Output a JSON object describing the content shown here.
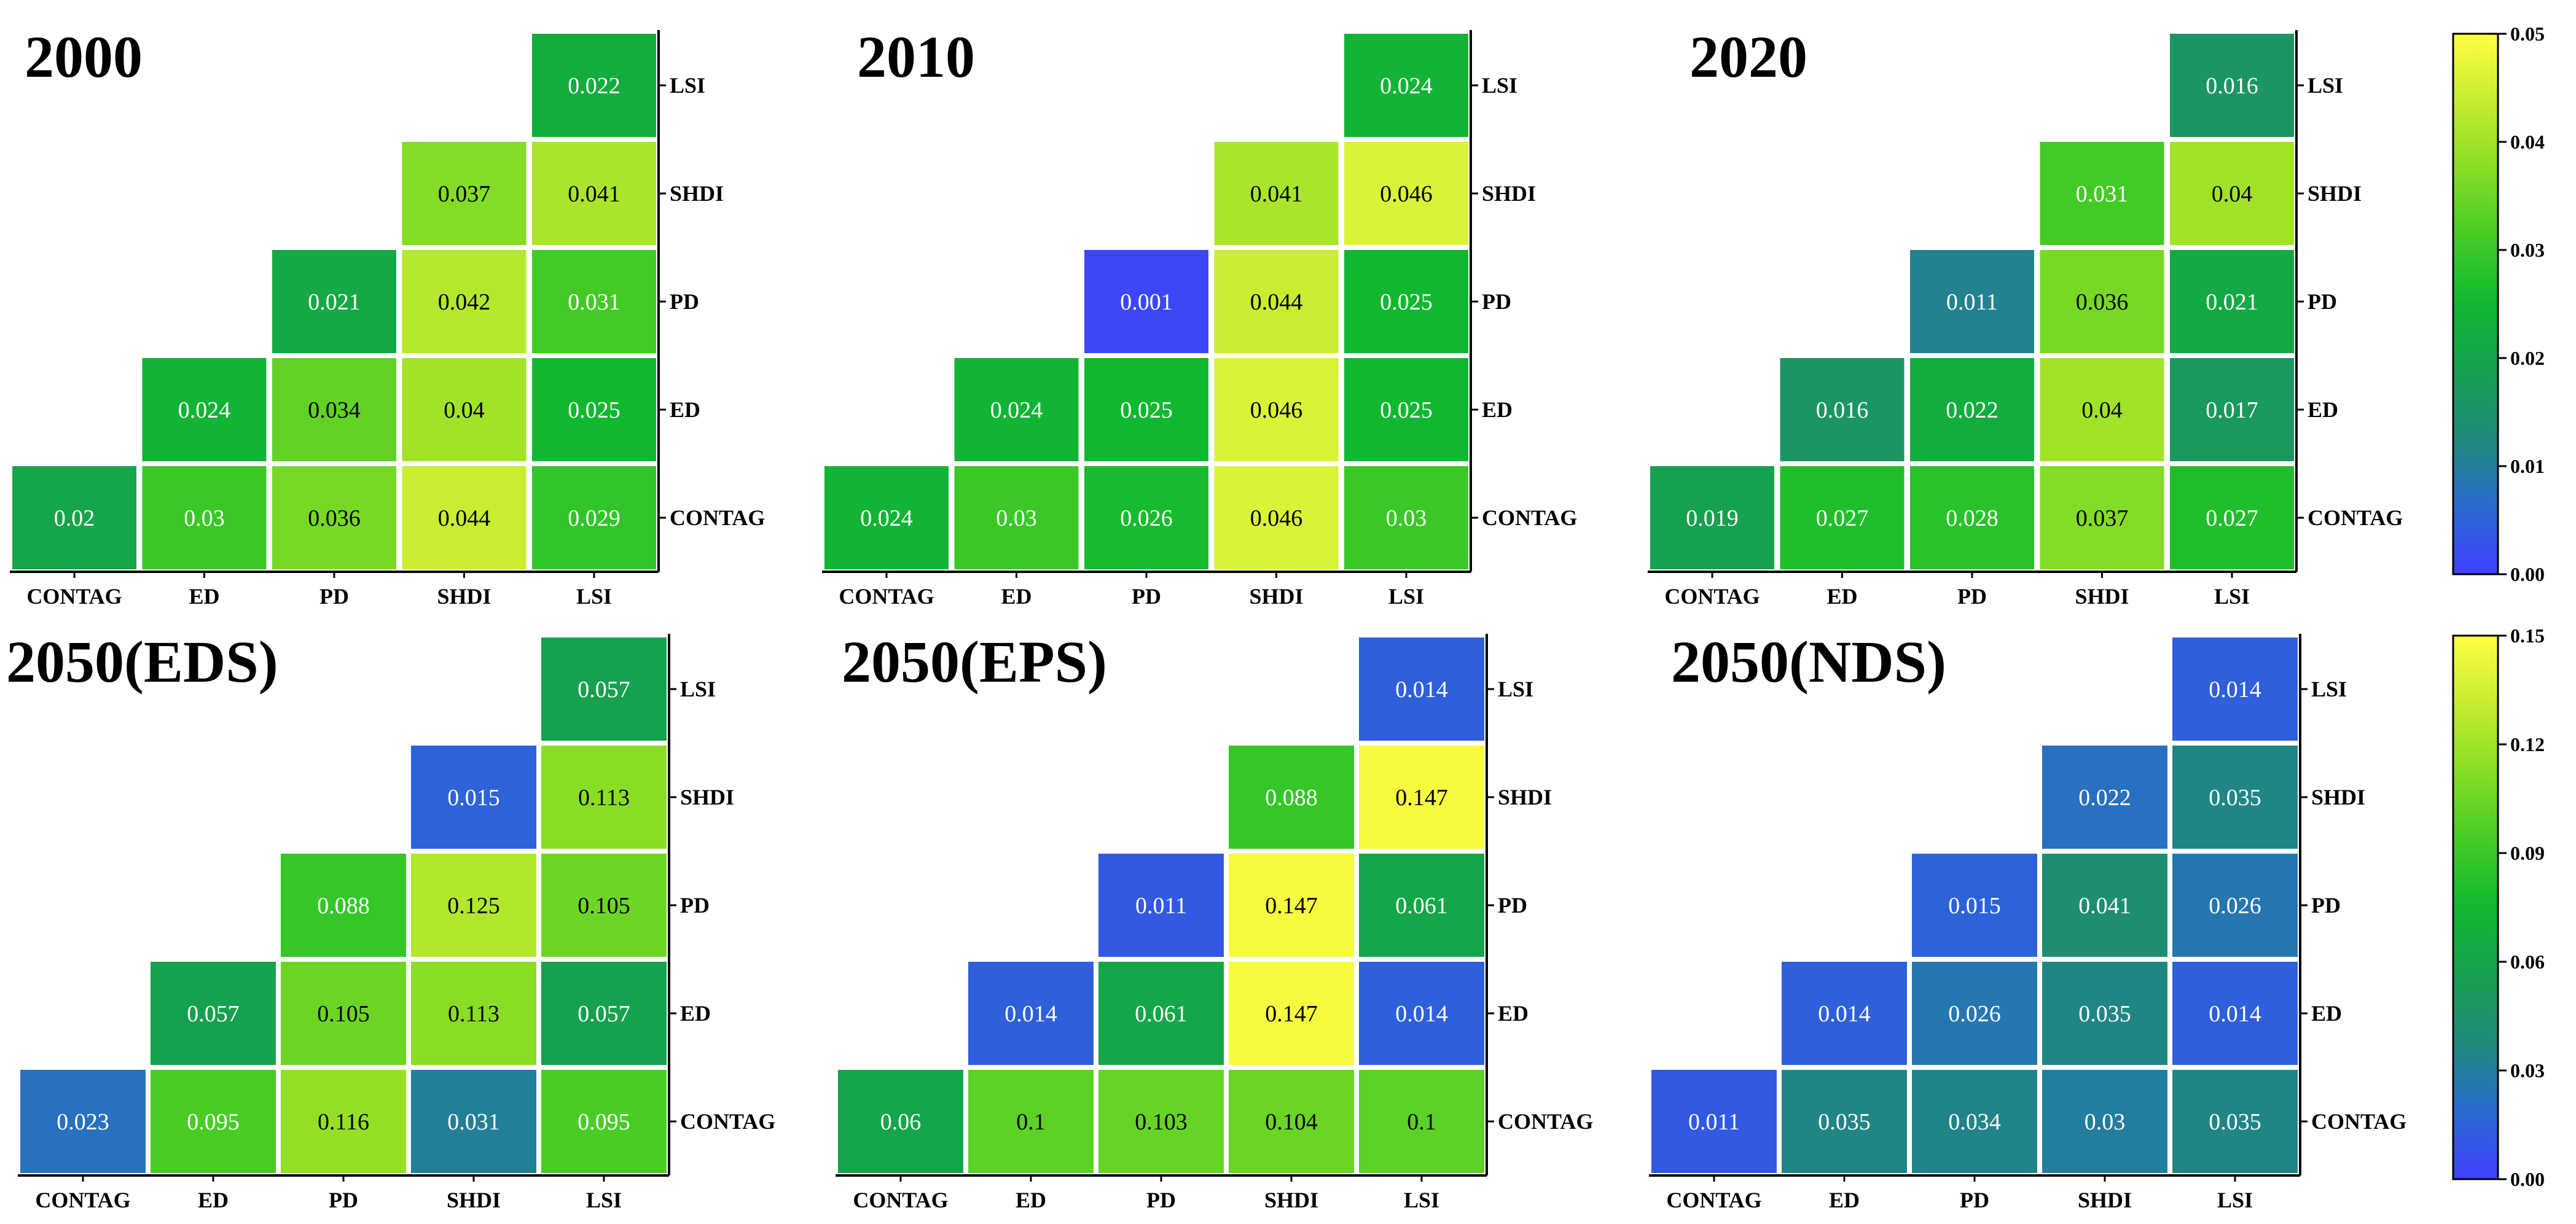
{
  "chart_data": [
    {
      "type": "heatmap",
      "title": "2000",
      "x_categories": [
        "CONTAG",
        "ED",
        "PD",
        "SHDI",
        "LSI"
      ],
      "y_categories": [
        "LSI",
        "SHDI",
        "PD",
        "ED",
        "CONTAG"
      ],
      "cells": [
        {
          "x": "LSI",
          "y": "LSI",
          "label": "0.022",
          "value": 0.022
        },
        {
          "x": "SHDI",
          "y": "SHDI",
          "label": "0.037",
          "value": 0.037
        },
        {
          "x": "LSI",
          "y": "SHDI",
          "label": "0.041",
          "value": 0.041
        },
        {
          "x": "PD",
          "y": "PD",
          "label": "0.021",
          "value": 0.021
        },
        {
          "x": "SHDI",
          "y": "PD",
          "label": "0.042",
          "value": 0.042
        },
        {
          "x": "LSI",
          "y": "PD",
          "label": "0.031",
          "value": 0.031
        },
        {
          "x": "ED",
          "y": "ED",
          "label": "0.024",
          "value": 0.024
        },
        {
          "x": "PD",
          "y": "ED",
          "label": "0.034",
          "value": 0.034
        },
        {
          "x": "SHDI",
          "y": "ED",
          "label": "0.04",
          "value": 0.04
        },
        {
          "x": "LSI",
          "y": "ED",
          "label": "0.025",
          "value": 0.025
        },
        {
          "x": "CONTAG",
          "y": "CONTAG",
          "label": "0.02",
          "value": 0.02
        },
        {
          "x": "ED",
          "y": "CONTAG",
          "label": "0.03",
          "value": 0.03
        },
        {
          "x": "PD",
          "y": "CONTAG",
          "label": "0.036",
          "value": 0.036
        },
        {
          "x": "SHDI",
          "y": "CONTAG",
          "label": "0.044",
          "value": 0.044
        },
        {
          "x": "LSI",
          "y": "CONTAG",
          "label": "0.029",
          "value": 0.029
        }
      ],
      "color_range": [
        0,
        0.05
      ]
    },
    {
      "type": "heatmap",
      "title": "2010",
      "x_categories": [
        "CONTAG",
        "ED",
        "PD",
        "SHDI",
        "LSI"
      ],
      "y_categories": [
        "LSI",
        "SHDI",
        "PD",
        "ED",
        "CONTAG"
      ],
      "cells": [
        {
          "x": "LSI",
          "y": "LSI",
          "label": "0.024",
          "value": 0.024
        },
        {
          "x": "SHDI",
          "y": "SHDI",
          "label": "0.041",
          "value": 0.041
        },
        {
          "x": "LSI",
          "y": "SHDI",
          "label": "0.046",
          "value": 0.046
        },
        {
          "x": "PD",
          "y": "PD",
          "label": "0.001",
          "value": 0.001
        },
        {
          "x": "SHDI",
          "y": "PD",
          "label": "0.044",
          "value": 0.044
        },
        {
          "x": "LSI",
          "y": "PD",
          "label": "0.025",
          "value": 0.025
        },
        {
          "x": "ED",
          "y": "ED",
          "label": "0.024",
          "value": 0.024
        },
        {
          "x": "PD",
          "y": "ED",
          "label": "0.025",
          "value": 0.025
        },
        {
          "x": "SHDI",
          "y": "ED",
          "label": "0.046",
          "value": 0.046
        },
        {
          "x": "LSI",
          "y": "ED",
          "label": "0.025",
          "value": 0.025
        },
        {
          "x": "CONTAG",
          "y": "CONTAG",
          "label": "0.024",
          "value": 0.024
        },
        {
          "x": "ED",
          "y": "CONTAG",
          "label": "0.03",
          "value": 0.03
        },
        {
          "x": "PD",
          "y": "CONTAG",
          "label": "0.026",
          "value": 0.026
        },
        {
          "x": "SHDI",
          "y": "CONTAG",
          "label": "0.046",
          "value": 0.046
        },
        {
          "x": "LSI",
          "y": "CONTAG",
          "label": "0.03",
          "value": 0.03
        }
      ],
      "color_range": [
        0,
        0.05
      ]
    },
    {
      "type": "heatmap",
      "title": "2020",
      "x_categories": [
        "CONTAG",
        "ED",
        "PD",
        "SHDI",
        "LSI"
      ],
      "y_categories": [
        "LSI",
        "SHDI",
        "PD",
        "ED",
        "CONTAG"
      ],
      "cells": [
        {
          "x": "LSI",
          "y": "LSI",
          "label": "0.016",
          "value": 0.016
        },
        {
          "x": "SHDI",
          "y": "SHDI",
          "label": "0.031",
          "value": 0.031
        },
        {
          "x": "LSI",
          "y": "SHDI",
          "label": "0.04",
          "value": 0.04
        },
        {
          "x": "PD",
          "y": "PD",
          "label": "0.011",
          "value": 0.011
        },
        {
          "x": "SHDI",
          "y": "PD",
          "label": "0.036",
          "value": 0.036
        },
        {
          "x": "LSI",
          "y": "PD",
          "label": "0.021",
          "value": 0.021
        },
        {
          "x": "ED",
          "y": "ED",
          "label": "0.016",
          "value": 0.016
        },
        {
          "x": "PD",
          "y": "ED",
          "label": "0.022",
          "value": 0.022
        },
        {
          "x": "SHDI",
          "y": "ED",
          "label": "0.04",
          "value": 0.04
        },
        {
          "x": "LSI",
          "y": "ED",
          "label": "0.017",
          "value": 0.017
        },
        {
          "x": "CONTAG",
          "y": "CONTAG",
          "label": "0.019",
          "value": 0.019
        },
        {
          "x": "ED",
          "y": "CONTAG",
          "label": "0.027",
          "value": 0.027
        },
        {
          "x": "PD",
          "y": "CONTAG",
          "label": "0.028",
          "value": 0.028
        },
        {
          "x": "SHDI",
          "y": "CONTAG",
          "label": "0.037",
          "value": 0.037
        },
        {
          "x": "LSI",
          "y": "CONTAG",
          "label": "0.027",
          "value": 0.027
        }
      ],
      "color_range": [
        0,
        0.05
      ]
    },
    {
      "type": "heatmap",
      "title": "2050(EDS)",
      "x_categories": [
        "CONTAG",
        "ED",
        "PD",
        "SHDI",
        "LSI"
      ],
      "y_categories": [
        "LSI",
        "SHDI",
        "PD",
        "ED",
        "CONTAG"
      ],
      "cells": [
        {
          "x": "LSI",
          "y": "LSI",
          "label": "0.057",
          "value": 0.057
        },
        {
          "x": "SHDI",
          "y": "SHDI",
          "label": "0.015",
          "value": 0.015
        },
        {
          "x": "LSI",
          "y": "SHDI",
          "label": "0.113",
          "value": 0.113
        },
        {
          "x": "PD",
          "y": "PD",
          "label": "0.088",
          "value": 0.088
        },
        {
          "x": "SHDI",
          "y": "PD",
          "label": "0.125",
          "value": 0.125
        },
        {
          "x": "LSI",
          "y": "PD",
          "label": "0.105",
          "value": 0.105
        },
        {
          "x": "ED",
          "y": "ED",
          "label": "0.057",
          "value": 0.057
        },
        {
          "x": "PD",
          "y": "ED",
          "label": "0.105",
          "value": 0.105
        },
        {
          "x": "SHDI",
          "y": "ED",
          "label": "0.113",
          "value": 0.113
        },
        {
          "x": "LSI",
          "y": "ED",
          "label": "0.057",
          "value": 0.057
        },
        {
          "x": "CONTAG",
          "y": "CONTAG",
          "label": "0.023",
          "value": 0.023
        },
        {
          "x": "ED",
          "y": "CONTAG",
          "label": "0.095",
          "value": 0.095
        },
        {
          "x": "PD",
          "y": "CONTAG",
          "label": "0.116",
          "value": 0.116
        },
        {
          "x": "SHDI",
          "y": "CONTAG",
          "label": "0.031",
          "value": 0.031
        },
        {
          "x": "LSI",
          "y": "CONTAG",
          "label": "0.095",
          "value": 0.095
        }
      ],
      "color_range": [
        0,
        0.15
      ]
    },
    {
      "type": "heatmap",
      "title": "2050(EPS)",
      "x_categories": [
        "CONTAG",
        "ED",
        "PD",
        "SHDI",
        "LSI"
      ],
      "y_categories": [
        "LSI",
        "SHDI",
        "PD",
        "ED",
        "CONTAG"
      ],
      "cells": [
        {
          "x": "LSI",
          "y": "LSI",
          "label": "0.014",
          "value": 0.014
        },
        {
          "x": "SHDI",
          "y": "SHDI",
          "label": "0.088",
          "value": 0.088
        },
        {
          "x": "LSI",
          "y": "SHDI",
          "label": "0.147",
          "value": 0.147
        },
        {
          "x": "PD",
          "y": "PD",
          "label": "0.011",
          "value": 0.011
        },
        {
          "x": "SHDI",
          "y": "PD",
          "label": "0.147",
          "value": 0.147
        },
        {
          "x": "LSI",
          "y": "PD",
          "label": "0.061",
          "value": 0.061
        },
        {
          "x": "ED",
          "y": "ED",
          "label": "0.014",
          "value": 0.014
        },
        {
          "x": "PD",
          "y": "ED",
          "label": "0.061",
          "value": 0.061
        },
        {
          "x": "SHDI",
          "y": "ED",
          "label": "0.147",
          "value": 0.147
        },
        {
          "x": "LSI",
          "y": "ED",
          "label": "0.014",
          "value": 0.014
        },
        {
          "x": "CONTAG",
          "y": "CONTAG",
          "label": "0.06",
          "value": 0.06
        },
        {
          "x": "ED",
          "y": "CONTAG",
          "label": "0.1",
          "value": 0.1
        },
        {
          "x": "PD",
          "y": "CONTAG",
          "label": "0.103",
          "value": 0.103
        },
        {
          "x": "SHDI",
          "y": "CONTAG",
          "label": "0.104",
          "value": 0.104
        },
        {
          "x": "LSI",
          "y": "CONTAG",
          "label": "0.1",
          "value": 0.1
        }
      ],
      "color_range": [
        0,
        0.15
      ]
    },
    {
      "type": "heatmap",
      "title": "2050(NDS)",
      "x_categories": [
        "CONTAG",
        "ED",
        "PD",
        "SHDI",
        "LSI"
      ],
      "y_categories": [
        "LSI",
        "SHDI",
        "PD",
        "ED",
        "CONTAG"
      ],
      "cells": [
        {
          "x": "LSI",
          "y": "LSI",
          "label": "0.014",
          "value": 0.014
        },
        {
          "x": "SHDI",
          "y": "SHDI",
          "label": "0.022",
          "value": 0.022
        },
        {
          "x": "LSI",
          "y": "SHDI",
          "label": "0.035",
          "value": 0.035
        },
        {
          "x": "PD",
          "y": "PD",
          "label": "0.015",
          "value": 0.015
        },
        {
          "x": "SHDI",
          "y": "PD",
          "label": "0.041",
          "value": 0.041
        },
        {
          "x": "LSI",
          "y": "PD",
          "label": "0.026",
          "value": 0.026
        },
        {
          "x": "ED",
          "y": "ED",
          "label": "0.014",
          "value": 0.014
        },
        {
          "x": "PD",
          "y": "ED",
          "label": "0.026",
          "value": 0.026
        },
        {
          "x": "SHDI",
          "y": "ED",
          "label": "0.035",
          "value": 0.035
        },
        {
          "x": "LSI",
          "y": "ED",
          "label": "0.014",
          "value": 0.014
        },
        {
          "x": "CONTAG",
          "y": "CONTAG",
          "label": "0.011",
          "value": 0.011
        },
        {
          "x": "ED",
          "y": "CONTAG",
          "label": "0.035",
          "value": 0.035
        },
        {
          "x": "PD",
          "y": "CONTAG",
          "label": "0.034",
          "value": 0.034
        },
        {
          "x": "SHDI",
          "y": "CONTAG",
          "label": "0.03",
          "value": 0.03
        },
        {
          "x": "LSI",
          "y": "CONTAG",
          "label": "0.035",
          "value": 0.035
        }
      ],
      "color_range": [
        0,
        0.15
      ]
    }
  ],
  "colorbars": [
    {
      "range": [
        0,
        0.05
      ],
      "ticks": [
        "0.05",
        "0.04",
        "0.03",
        "0.02",
        "0.01",
        "0.00"
      ]
    },
    {
      "range": [
        0,
        0.15
      ],
      "ticks": [
        "0.15",
        "0.12",
        "0.09",
        "0.06",
        "0.03",
        "0.00"
      ]
    }
  ],
  "colormap": [
    "#4040ff",
    "#2a6ad0",
    "#1f8a7a",
    "#16a050",
    "#10b830",
    "#45cc25",
    "#88dd25",
    "#c6ec30",
    "#ffff40"
  ],
  "text_colors": {
    "light": "#ffffff",
    "dark": "#000000"
  }
}
